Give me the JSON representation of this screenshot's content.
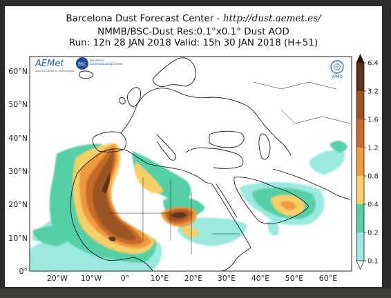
{
  "header": {
    "title_prefix": "Barcelona Dust Forecast Center - ",
    "title_url": "http://dust.aemet.es/",
    "line2": "NMMB/BSC-Dust   Res:0.1°x0.1°   Dust AOD",
    "line3": "Run: 12h 28 JAN 2018   Valid: 15h 30 JAN 2018 (H+51)"
  },
  "logos": {
    "aemet": "AEMet",
    "aemet_sub": "Agencia Estatal de Meteorología",
    "bsc": "BSC",
    "bsc_name": "Barcelona Supercomputing Center",
    "wmo": "WMO"
  },
  "axes": {
    "lat_labels": [
      "0°",
      "10°N",
      "20°N",
      "30°N",
      "40°N",
      "50°N",
      "60°N"
    ],
    "lon_labels": [
      "20°W",
      "10°W",
      "0°",
      "10°E",
      "20°E",
      "30°E",
      "40°E",
      "50°E",
      "60°E"
    ]
  },
  "colorbar": {
    "levels": [
      "0.1",
      "0.2",
      "0.4",
      "0.8",
      "1.2",
      "1.6",
      "3.2",
      "6.4"
    ],
    "colors": [
      "#9be8e0",
      "#55cfa6",
      "#f6cf66",
      "#ef9a3c",
      "#c86a2a",
      "#9c5422",
      "#5e3416"
    ]
  },
  "map_colors": {
    "ocean": "#ffffff",
    "land_outline": "#1a1a1a"
  }
}
